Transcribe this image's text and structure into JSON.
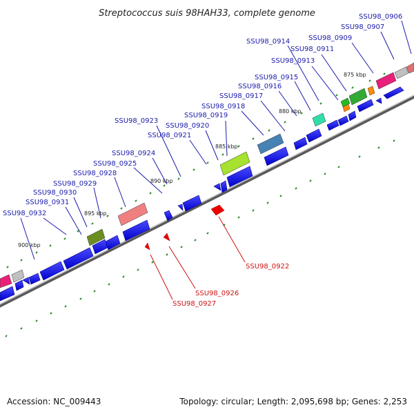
{
  "title": "Streptococcus suis 98HAH33, complete genome",
  "accession": "Accession: NC_009443",
  "summary": "Topology: circular; Length: 2,095,698 bp; Genes: 2,253",
  "colors": {
    "forward": "#0000ee",
    "reverse": "#ee0000",
    "backbone": "#808080",
    "tick": "#2e8b2e",
    "label_forward": "#1a1aaa",
    "label_reverse": "#cc1111"
  },
  "scale_labels": [
    "875 kbp",
    "880 kbp",
    "885 kbp",
    "890 kbp",
    "895 kbp",
    "900 kbp"
  ],
  "forward_labels": [
    "SSU98_0906",
    "SSU98_0907",
    "SSU98_0909",
    "SSU98_0911",
    "SSU98_0913",
    "SSU98_0914",
    "SSU98_0915",
    "SSU98_0916",
    "SSU98_0917",
    "SSU98_0918",
    "SSU98_0919",
    "SSU98_0920",
    "SSU98_0921",
    "SSU98_0923",
    "SSU98_0924",
    "SSU98_0925",
    "SSU98_0928",
    "SSU98_0929",
    "SSU98_0930",
    "SSU98_0931",
    "SSU98_0932"
  ],
  "reverse_labels": [
    "SSU98_0922",
    "SSU98_0926",
    "SSU98_0927"
  ]
}
